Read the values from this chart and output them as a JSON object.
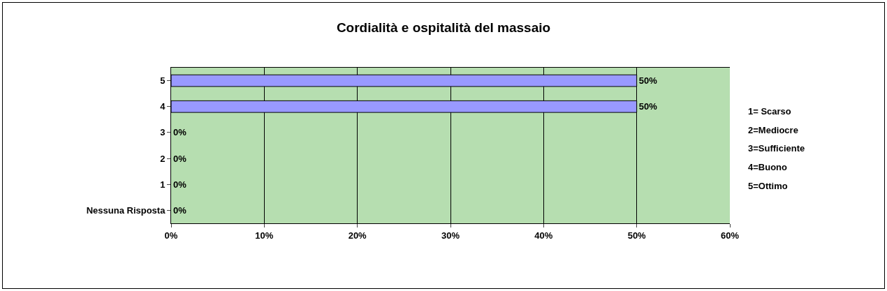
{
  "chart_data": {
    "type": "bar",
    "title": "Cordialità e ospitalità del massaio",
    "orientation": "horizontal",
    "categories": [
      "5",
      "4",
      "3",
      "2",
      "1",
      "Nessuna Risposta"
    ],
    "values": [
      50,
      50,
      0,
      0,
      0,
      0
    ],
    "value_labels": [
      "50%",
      "50%",
      "0%",
      "0%",
      "0%",
      "0%"
    ],
    "color": "#9999ff",
    "xlim": [
      0,
      60
    ],
    "xticks": [
      {
        "value": 0,
        "label": "0%"
      },
      {
        "value": 10,
        "label": "10%"
      },
      {
        "value": 20,
        "label": "20%"
      },
      {
        "value": 30,
        "label": "30%"
      },
      {
        "value": 40,
        "label": "40%"
      },
      {
        "value": 50,
        "label": "50%"
      },
      {
        "value": 60,
        "label": "60%"
      }
    ],
    "grid": "x",
    "annotations": [
      "1= Scarso",
      "2=Mediocre",
      "3=Sufficiente",
      "4=Buono",
      "5=Ottimo"
    ]
  }
}
